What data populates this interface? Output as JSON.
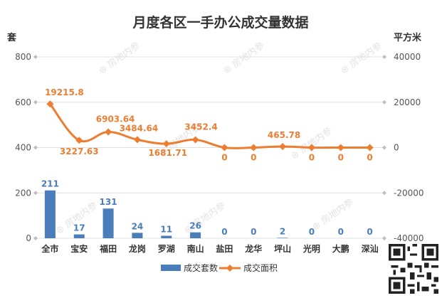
{
  "chart_data": {
    "type": "bar+line",
    "title": "月度各区一手办公成交量数据",
    "y_left_label": "套",
    "y_right_label": "平方米",
    "categories": [
      "全市",
      "宝安",
      "福田",
      "龙岗",
      "罗湖",
      "南山",
      "盐田",
      "龙华",
      "坪山",
      "光明",
      "大鹏",
      "深汕"
    ],
    "y_left": {
      "min": 0,
      "max": 800,
      "ticks": [
        0,
        200,
        400,
        600,
        800
      ]
    },
    "y_right": {
      "min": -40000,
      "max": 40000,
      "ticks": [
        -40000,
        -20000,
        0,
        20000,
        40000
      ]
    },
    "series": [
      {
        "name": "成交套数",
        "type": "bar",
        "axis": "left",
        "color": "#4a7ebb",
        "values": [
          211,
          17,
          131,
          24,
          11,
          26,
          0,
          0,
          2,
          0,
          0,
          0
        ],
        "labels": [
          "211",
          "17",
          "131",
          "24",
          "11",
          "26",
          "0",
          "0",
          "2",
          "0",
          "0",
          "0"
        ]
      },
      {
        "name": "成交面积",
        "type": "line",
        "axis": "right",
        "color": "#ed7d31",
        "values": [
          19215.8,
          3227.63,
          6903.64,
          3484.64,
          1681.71,
          3452.4,
          0,
          0,
          465.78,
          0,
          0,
          0
        ],
        "labels": [
          "19215.8",
          "3227.63",
          "6903.64",
          "3484.64",
          "1681.71",
          "3452.4",
          "0",
          "0",
          "465.78",
          "0",
          "0",
          "0"
        ]
      }
    ],
    "legend_position": "bottom",
    "watermark": "房地内参"
  }
}
